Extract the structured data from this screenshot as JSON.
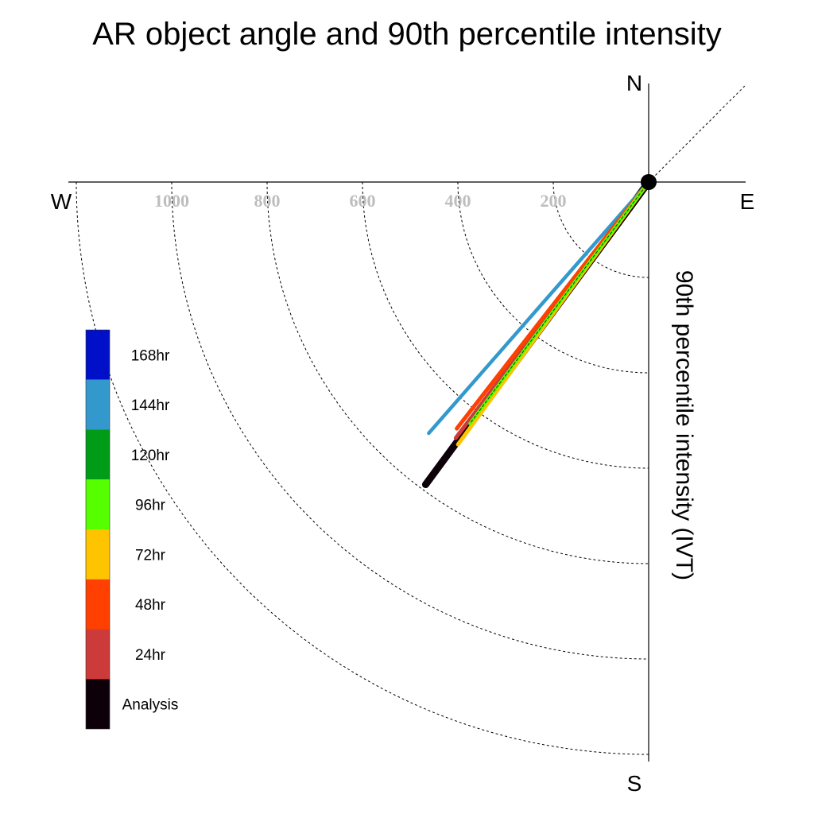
{
  "title": "AR object angle and 90th percentile intensity",
  "compass": {
    "n": "N",
    "s": "S",
    "e": "E",
    "w": "W"
  },
  "radial_label": "90th percentile intensity (IVT)",
  "chart_data": {
    "type": "polar-vector",
    "title": "AR object angle and 90th percentile intensity",
    "radial_axis_label": "90th percentile intensity (IVT)",
    "radial_ticks": [
      200,
      400,
      600,
      800,
      1000
    ],
    "radial_max": 1200,
    "direction_labels": [
      "N",
      "E",
      "S",
      "W"
    ],
    "series": [
      {
        "name": "168hr",
        "color": "#0010c8",
        "angle_deg": null,
        "intensity": null
      },
      {
        "name": "144hr",
        "color": "#3399cc",
        "angle_deg": 221.2,
        "intensity": 700
      },
      {
        "name": "120hr",
        "color": "#009b17",
        "angle_deg": null,
        "intensity": null
      },
      {
        "name": "96hr",
        "color": "#55ff00",
        "angle_deg": 216.5,
        "intensity": 630
      },
      {
        "name": "72hr",
        "color": "#ffc400",
        "angle_deg": 216.0,
        "intensity": 680
      },
      {
        "name": "48hr",
        "color": "#ff4000",
        "angle_deg": 217.9,
        "intensity": 655
      },
      {
        "name": "24hr",
        "color": "#cc3a3a",
        "angle_deg": 217.0,
        "intensity": 672
      },
      {
        "name": "Analysis",
        "color": "#0d0008",
        "angle_deg": 216.4,
        "intensity": 788
      }
    ]
  }
}
